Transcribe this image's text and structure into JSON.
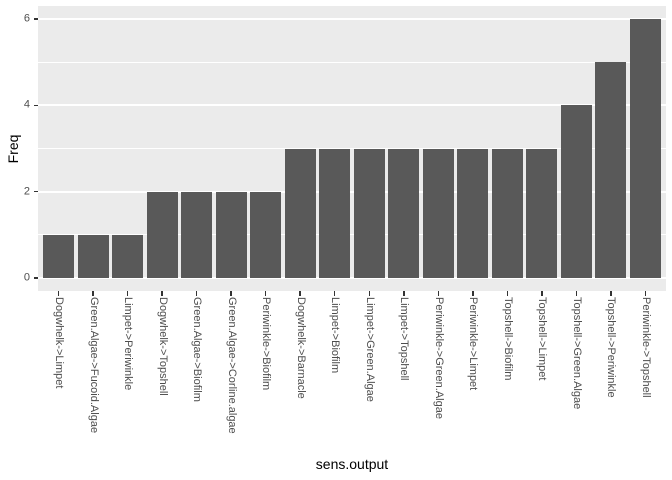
{
  "chart_data": {
    "type": "bar",
    "title": "",
    "xlabel": "sens.output",
    "ylabel": "Freq",
    "categories": [
      "Dogwhelk->Limpet",
      "Green.Algae->Fucoid.Algae",
      "Limpet->Periwinkle",
      "Dogwhelk->Topshell",
      "Green.Algae->Biofilm",
      "Green.Algae->Corline.algae",
      "Periwinkle->Biofilm",
      "Dogwhelk->Barnacle",
      "Limpet->Biofilm",
      "Limpet->Green.Algae",
      "Limpet->Topshell",
      "Periwinkle->Green.Algae",
      "Periwinkle->Limpet",
      "Topshell->Biofilm",
      "Topshell->Limpet",
      "Topshell->Green.Algae",
      "Topshell->Periwinkle",
      "Periwinkle->Topshell"
    ],
    "values": [
      1,
      1,
      1,
      2,
      2,
      2,
      2,
      3,
      3,
      3,
      3,
      3,
      3,
      3,
      3,
      4,
      5,
      6
    ],
    "ylim": [
      -0.3,
      6.3
    ],
    "yticks": [
      0,
      2,
      4,
      6
    ],
    "minor_gridlines": [
      1,
      3,
      5
    ],
    "grid": "on",
    "legend": "none",
    "colors": {
      "bar_fill": "#595959",
      "panel_background": "#EBEBEB",
      "gridline": "#FFFFFF",
      "axis_text": "#4D4D4D",
      "axis_title": "#000000",
      "tick_mark": "#333333",
      "figure_background": "#FFFFFF"
    }
  }
}
